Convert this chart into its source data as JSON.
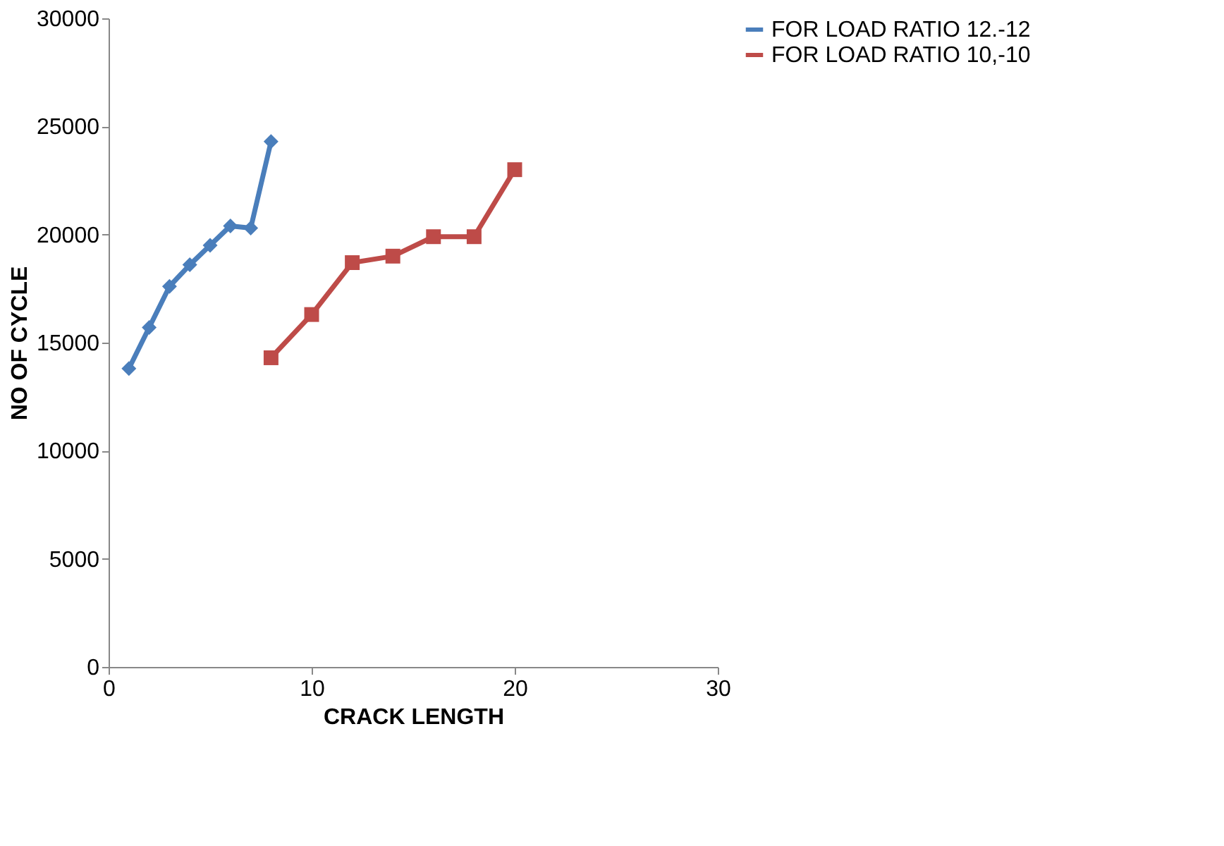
{
  "chart_data": {
    "type": "line",
    "xlabel": "CRACK LENGTH",
    "ylabel": "NO OF CYCLE",
    "xlim": [
      0,
      30
    ],
    "xticks": [
      0,
      10,
      20,
      30
    ],
    "ylim": [
      0,
      30000
    ],
    "yticks": [
      0,
      5000,
      10000,
      15000,
      20000,
      25000,
      30000
    ],
    "grid": false,
    "legend": "right",
    "line_style": "solid",
    "series": [
      {
        "name": "FOR  LOAD RATIO 12.-12",
        "color": "#4a7ebb",
        "marker": "diamond",
        "x": [
          1,
          2,
          3,
          4,
          5,
          6,
          7,
          8
        ],
        "values": [
          13800,
          15700,
          17600,
          18600,
          19500,
          20400,
          20300,
          24300
        ]
      },
      {
        "name": "FOR LOAD RATIO 10,-10",
        "color": "#be4b48",
        "marker": "square",
        "x": [
          8,
          10,
          12,
          14,
          16,
          18,
          20
        ],
        "values": [
          14300,
          16300,
          18700,
          19000,
          19900,
          19900,
          23000
        ]
      }
    ]
  }
}
